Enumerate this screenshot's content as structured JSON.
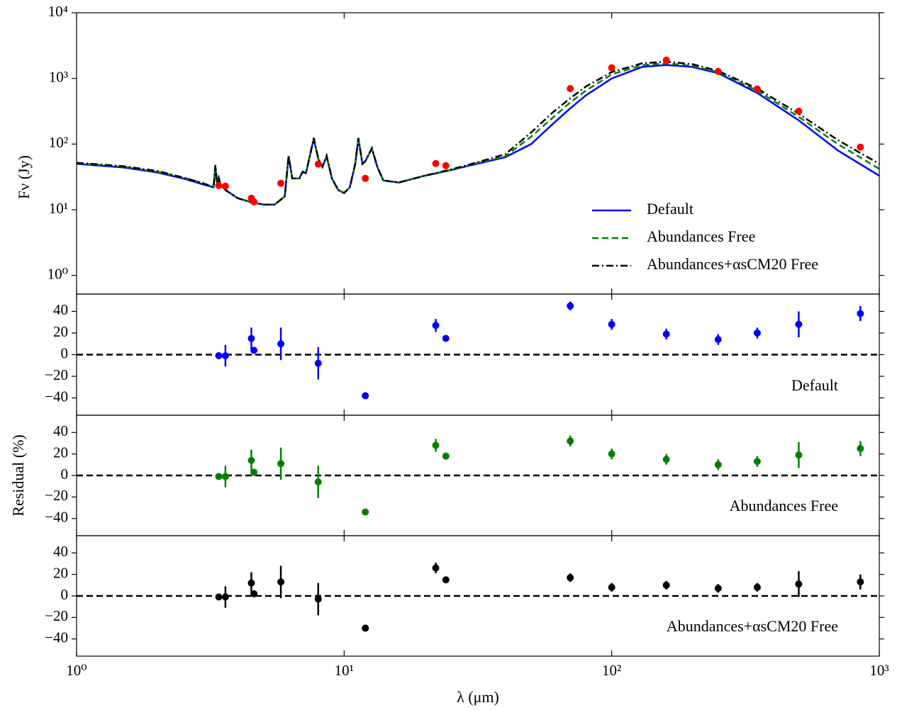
{
  "chart_data": [
    {
      "type": "line",
      "y_label": "Fν (Jy)",
      "log_x": true,
      "log_y": true,
      "xlim": [
        1,
        1000
      ],
      "xticks": [
        1,
        10,
        100,
        1000
      ],
      "ylim": [
        0.52,
        10000
      ],
      "yticks": [
        {
          "value": 1,
          "label": "10⁰"
        },
        {
          "value": 10,
          "label": "10¹"
        },
        {
          "value": 100,
          "label": "10²"
        },
        {
          "value": 1000,
          "label": "10³"
        },
        {
          "value": 10000,
          "label": "10⁴"
        }
      ],
      "legend": "lower right",
      "x": [
        1,
        1.5,
        2,
        2.5,
        3,
        3.25,
        3.3,
        3.35,
        3.4,
        3.45,
        3.6,
        4,
        4.5,
        5,
        5.5,
        6,
        6.2,
        6.4,
        6.8,
        7.0,
        7.2,
        7.7,
        8.0,
        8.3,
        8.6,
        9,
        9.5,
        10,
        10.5,
        11,
        11.3,
        11.7,
        12,
        12.7,
        13.3,
        14,
        16,
        20,
        25,
        30,
        40,
        50,
        60,
        70,
        80,
        100,
        130,
        160,
        200,
        250,
        350,
        500,
        700,
        1000
      ],
      "series": [
        {
          "name": "Default",
          "color": "#0000ff",
          "linestyle": "solid",
          "values": [
            50,
            44,
            37,
            30,
            24,
            22,
            45,
            25,
            30,
            24,
            20,
            15,
            13,
            12,
            12,
            16,
            65,
            30,
            30,
            38,
            36,
            120,
            60,
            45,
            65,
            30,
            20,
            18,
            22,
            50,
            120,
            50,
            55,
            85,
            45,
            28,
            26,
            33,
            40,
            48,
            63,
            100,
            200,
            350,
            550,
            1000,
            1500,
            1600,
            1500,
            1200,
            600,
            230,
            80,
            33
          ]
        },
        {
          "name": "Abundances Free",
          "color": "#008000",
          "linestyle": "dashed",
          "values": [
            51,
            45,
            38,
            31,
            25,
            22,
            46,
            25,
            30,
            24,
            20,
            15,
            13,
            12,
            12,
            16,
            66,
            30,
            30,
            38,
            36,
            122,
            60,
            45,
            66,
            30,
            20,
            18,
            22,
            50,
            122,
            50,
            55,
            86,
            45,
            28,
            26,
            33,
            40,
            49,
            65,
            130,
            250,
            430,
            650,
            1150,
            1600,
            1700,
            1550,
            1250,
            650,
            260,
            100,
            42
          ]
        },
        {
          "name": "Abundances+αsCM20 Free",
          "color": "#000000",
          "linestyle": "dashdot",
          "values": [
            52,
            46,
            39,
            31,
            25,
            22,
            48,
            26,
            31,
            24,
            20,
            15,
            13,
            12,
            12,
            16,
            67,
            30,
            30,
            38,
            36,
            125,
            60,
            45,
            67,
            30,
            20,
            18,
            22,
            50,
            124,
            50,
            55,
            87,
            45,
            28,
            26,
            33,
            41,
            50,
            70,
            150,
            300,
            500,
            750,
            1250,
            1700,
            1800,
            1650,
            1300,
            700,
            290,
            115,
            50
          ]
        }
      ],
      "points": {
        "color": "#ff0000",
        "x": [
          3.4,
          3.6,
          4.5,
          4.6,
          5.8,
          8.0,
          12,
          22,
          24,
          70,
          100,
          160,
          250,
          350,
          500,
          850
        ],
        "values": [
          23.4,
          22.9,
          15,
          13.2,
          25.3,
          49.5,
          30,
          50.6,
          47,
          700,
          1450,
          1900,
          1280,
          690,
          317,
          90
        ]
      }
    },
    {
      "type": "errorbar",
      "annotation": "Default",
      "color": "#0000ff",
      "log_x": true,
      "xlim": [
        1,
        1000
      ],
      "xticks": [
        1,
        10,
        100,
        1000
      ],
      "ylim": [
        -56,
        56
      ],
      "yticks": [
        {
          "value": -40,
          "label": "−40"
        },
        {
          "value": -20,
          "label": "−20"
        },
        0,
        20,
        40
      ],
      "reference_line": 0,
      "x": [
        3.4,
        3.6,
        4.5,
        4.6,
        5.8,
        8.0,
        12,
        22,
        24,
        70,
        100,
        160,
        250,
        350,
        500,
        850
      ],
      "values": [
        -1,
        -1,
        15,
        4,
        10,
        -8,
        -38,
        27,
        15,
        45,
        28,
        19,
        14,
        20,
        28,
        38
      ],
      "errors": [
        1,
        10,
        10,
        2,
        15,
        15,
        3,
        6,
        3,
        4,
        5,
        5,
        5,
        5,
        12,
        7
      ]
    },
    {
      "type": "errorbar",
      "annotation": "Abundances Free",
      "y_label": "Residual (%)",
      "color": "#008000",
      "log_x": true,
      "xlim": [
        1,
        1000
      ],
      "xticks": [
        1,
        10,
        100,
        1000
      ],
      "ylim": [
        -56,
        56
      ],
      "yticks": [
        {
          "value": -40,
          "label": "−40"
        },
        {
          "value": -20,
          "label": "−20"
        },
        0,
        20,
        40
      ],
      "reference_line": 0,
      "x": [
        3.4,
        3.6,
        4.5,
        4.6,
        5.8,
        8.0,
        12,
        22,
        24,
        70,
        100,
        160,
        250,
        350,
        500,
        850
      ],
      "values": [
        -1,
        -1,
        14,
        3,
        11,
        -6,
        -34,
        28,
        18,
        32,
        20,
        15,
        10,
        13,
        19,
        25
      ],
      "errors": [
        1,
        10,
        10,
        2,
        15,
        15,
        3,
        6,
        3,
        5,
        5,
        5,
        5,
        5,
        12,
        7
      ]
    },
    {
      "type": "errorbar",
      "annotation": "Abundances+αsCM20 Free",
      "x_label": "λ (μm)",
      "color": "#000000",
      "log_x": true,
      "xlim": [
        1,
        1000
      ],
      "xticks": [
        {
          "value": 1,
          "label": "10⁰"
        },
        {
          "value": 10,
          "label": "10¹"
        },
        {
          "value": 100,
          "label": "10²"
        },
        {
          "value": 1000,
          "label": "10³"
        }
      ],
      "ylim": [
        -56,
        56
      ],
      "yticks": [
        {
          "value": -40,
          "label": "−40"
        },
        {
          "value": -20,
          "label": "−20"
        },
        0,
        20,
        40
      ],
      "reference_line": 0,
      "x": [
        3.4,
        3.6,
        4.5,
        4.6,
        5.8,
        8.0,
        12,
        22,
        24,
        70,
        100,
        160,
        250,
        350,
        500,
        850
      ],
      "values": [
        -1,
        -1,
        12,
        2,
        13,
        -3,
        -30,
        26,
        15,
        17,
        8,
        10,
        7,
        8,
        11,
        13
      ],
      "errors": [
        1,
        10,
        10,
        2,
        15,
        15,
        3,
        5,
        3,
        4,
        4,
        4,
        4,
        4,
        12,
        7
      ]
    }
  ]
}
